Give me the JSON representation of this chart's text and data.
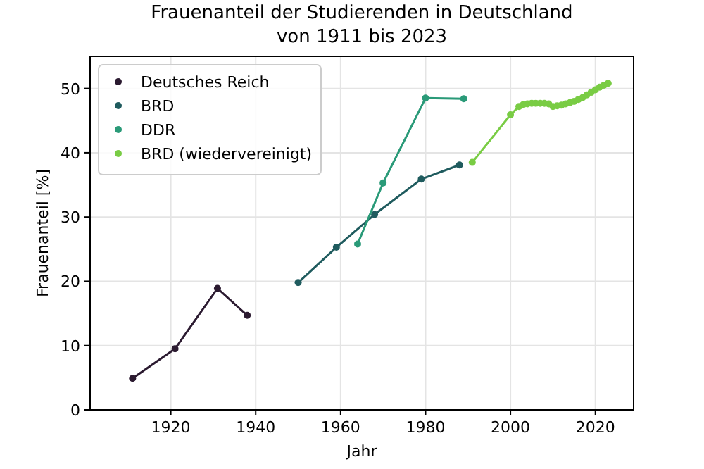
{
  "chart_data": {
    "type": "line",
    "title": "Frauenanteil der Studierenden in Deutschland\nvon 1911 bis 2023",
    "xlabel": "Jahr",
    "ylabel": "Frauenanteil [%]",
    "xlim": [
      1901,
      2029
    ],
    "xticks": [
      1920,
      1940,
      1960,
      1980,
      2000,
      2020
    ],
    "ylim": [
      0,
      55
    ],
    "yticks": [
      0,
      10,
      20,
      30,
      40,
      50
    ],
    "grid": true,
    "legend": "top left",
    "marker": "circle",
    "series": [
      {
        "name": "Deutsches Reich",
        "color": "#2b1a30",
        "x": [
          1911,
          1921,
          1931,
          1938
        ],
        "values": [
          4.9,
          9.5,
          18.9,
          14.7
        ]
      },
      {
        "name": "BRD",
        "color": "#1f5b5e",
        "x": [
          1950,
          1959,
          1968,
          1979,
          1988
        ],
        "values": [
          19.8,
          25.3,
          30.4,
          35.9,
          38.1
        ]
      },
      {
        "name": "DDR",
        "color": "#2a9a78",
        "x": [
          1964,
          1970,
          1980,
          1989
        ],
        "values": [
          25.8,
          35.3,
          48.5,
          48.4
        ]
      },
      {
        "name": "BRD (wiedervereinigt)",
        "color": "#79cc44",
        "x": [
          1991,
          2000,
          2002,
          2003,
          2004,
          2005,
          2006,
          2007,
          2008,
          2009,
          2010,
          2011,
          2012,
          2013,
          2014,
          2015,
          2016,
          2017,
          2018,
          2019,
          2020,
          2021,
          2022,
          2023
        ],
        "values": [
          38.5,
          45.9,
          47.2,
          47.5,
          47.6,
          47.7,
          47.7,
          47.7,
          47.7,
          47.6,
          47.2,
          47.3,
          47.4,
          47.6,
          47.8,
          48.0,
          48.3,
          48.6,
          49.0,
          49.4,
          49.8,
          50.2,
          50.5,
          50.8
        ]
      }
    ]
  }
}
